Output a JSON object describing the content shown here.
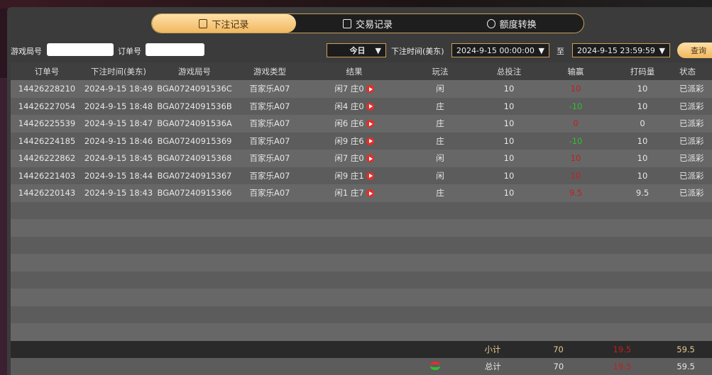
{
  "tabs": [
    {
      "label": "下注记录",
      "icon": "calendar-icon",
      "active": true
    },
    {
      "label": "交易记录",
      "icon": "clipboard-icon",
      "active": false
    },
    {
      "label": "额度转换",
      "icon": "money-bag-icon",
      "active": false
    }
  ],
  "filters": {
    "game_round_label": "游戏局号",
    "game_round_value": "",
    "order_label": "订单号",
    "order_value": "",
    "period": "今日",
    "time_label": "下注时间(美东)",
    "start": "2024-9-15 00:00:00",
    "to_label": "至",
    "end": "2024-9-15 23:59:59",
    "query": "查询"
  },
  "columns": [
    "订单号",
    "下注时间(美东)",
    "游戏局号",
    "游戏类型",
    "结果",
    "玩法",
    "总投注",
    "输赢",
    "打码量",
    "状态"
  ],
  "rows": [
    [
      "14426228210",
      "2024-9-15 18:49",
      "BGA0724091536C",
      "百家乐A07",
      "闲7 庄0",
      "闲",
      "10",
      "10",
      "10",
      "已派彩"
    ],
    [
      "14426227054",
      "2024-9-15 18:48",
      "BGA0724091536B",
      "百家乐A07",
      "闲4 庄0",
      "庄",
      "10",
      "-10",
      "10",
      "已派彩"
    ],
    [
      "14426225539",
      "2024-9-15 18:47",
      "BGA0724091536A",
      "百家乐A07",
      "闲6 庄6",
      "庄",
      "10",
      "0",
      "0",
      "已派彩"
    ],
    [
      "14426224185",
      "2024-9-15 18:46",
      "BGA07240915369",
      "百家乐A07",
      "闲9 庄6",
      "庄",
      "10",
      "-10",
      "10",
      "已派彩"
    ],
    [
      "14426222862",
      "2024-9-15 18:45",
      "BGA07240915368",
      "百家乐A07",
      "闲7 庄0",
      "闲",
      "10",
      "10",
      "10",
      "已派彩"
    ],
    [
      "14426221403",
      "2024-9-15 18:44",
      "BGA07240915367",
      "百家乐A07",
      "闲9 庄1",
      "闲",
      "10",
      "10",
      "10",
      "已派彩"
    ],
    [
      "14426220143",
      "2024-9-15 18:43",
      "BGA07240915366",
      "百家乐A07",
      "闲1 庄7",
      "庄",
      "10",
      "9.5",
      "9.5",
      "已派彩"
    ]
  ],
  "subtotal": {
    "label": "小计",
    "bet": "70",
    "win": "19.5",
    "turnover": "59.5"
  },
  "total": {
    "label": "总计",
    "bet": "70",
    "win": "19.5",
    "turnover": "59.5"
  },
  "colors": {
    "accent": "#f0b860",
    "loss": "#c0201e",
    "win": "#2fc12f"
  }
}
